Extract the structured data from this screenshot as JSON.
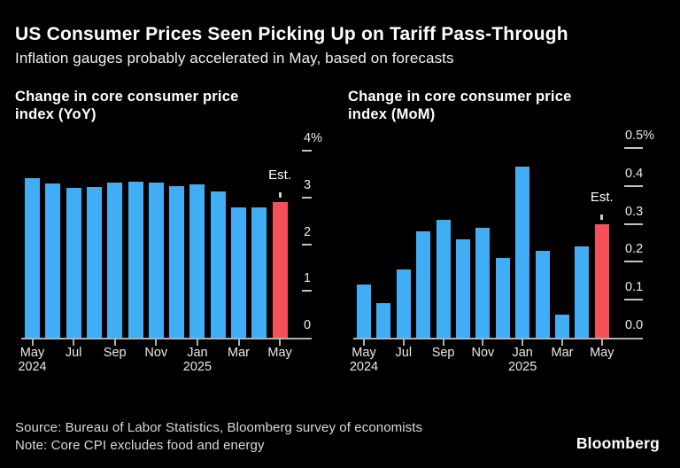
{
  "header": {
    "title": "US Consumer Prices Seen Picking Up on Tariff Pass-Through",
    "subtitle": "Inflation gauges probably accelerated in May, based on forecasts"
  },
  "footer": {
    "source": "Source: Bureau of Labor Statistics, Bloomberg survey of economists",
    "note": "Note: Core CPI excludes food and energy",
    "logo": "Bloomberg"
  },
  "colors": {
    "background": "#000000",
    "bar_blue": "#41ADF5",
    "bar_estimate_red": "#F6515A",
    "axis_line": "#B0B0B0",
    "axis_label": "#E9E9E9",
    "title_text": "#FFFFFF",
    "footer_text": "#D9D9D9"
  },
  "chart_data": [
    {
      "type": "bar",
      "title": "Change in core consumer price index (YoY)",
      "title_lines": [
        "Change in core consumer price",
        "index (YoY)"
      ],
      "ylabel": "%",
      "ylim": [
        0,
        4
      ],
      "grid": false,
      "legend": "none",
      "categories": [
        "May 2024",
        "Jun 2024",
        "Jul 2024",
        "Aug 2024",
        "Sep 2024",
        "Oct 2024",
        "Nov 2024",
        "Dec 2024",
        "Jan 2025",
        "Feb 2025",
        "Mar 2025",
        "Apr 2025",
        "May 2025"
      ],
      "values": [
        3.42,
        3.3,
        3.2,
        3.22,
        3.31,
        3.33,
        3.31,
        3.25,
        3.28,
        3.12,
        2.79,
        2.78,
        2.9
      ],
      "estimate_index": 12,
      "estimate_label": "Est.",
      "y_ticks": [
        {
          "label": "4%",
          "value": 4
        },
        {
          "label": "3",
          "value": 3
        },
        {
          "label": "2",
          "value": 2
        },
        {
          "label": "1",
          "value": 1
        },
        {
          "label": "0",
          "value": 0
        }
      ],
      "x_ticks": [
        {
          "index": 0,
          "label": "May",
          "sublabel": "2024"
        },
        {
          "index": 2,
          "label": "Jul"
        },
        {
          "index": 4,
          "label": "Sep"
        },
        {
          "index": 6,
          "label": "Nov"
        },
        {
          "index": 8,
          "label": "Jan",
          "sublabel": "2025"
        },
        {
          "index": 10,
          "label": "Mar"
        },
        {
          "index": 12,
          "label": "May"
        }
      ]
    },
    {
      "type": "bar",
      "title": "Change in core consumer price index (MoM)",
      "title_lines": [
        "Change in core consumer price",
        "index (MoM)"
      ],
      "ylabel": "%",
      "ylim": [
        0,
        0.5
      ],
      "grid": false,
      "legend": "none",
      "categories": [
        "May 2024",
        "Jun 2024",
        "Jul 2024",
        "Aug 2024",
        "Sep 2024",
        "Oct 2024",
        "Nov 2024",
        "Dec 2024",
        "Jan 2025",
        "Feb 2025",
        "Mar 2025",
        "Apr 2025",
        "May 2025"
      ],
      "values": [
        0.14,
        0.09,
        0.18,
        0.28,
        0.31,
        0.26,
        0.29,
        0.21,
        0.45,
        0.23,
        0.06,
        0.24,
        0.3
      ],
      "estimate_index": 12,
      "estimate_label": "Est.",
      "y_ticks": [
        {
          "label": "0.5%",
          "value": 0.5
        },
        {
          "label": "0.4",
          "value": 0.4
        },
        {
          "label": "0.3",
          "value": 0.3
        },
        {
          "label": "0.2",
          "value": 0.2
        },
        {
          "label": "0.1",
          "value": 0.1
        },
        {
          "label": "0.0",
          "value": 0
        }
      ],
      "x_ticks": [
        {
          "index": 0,
          "label": "May",
          "sublabel": "2024"
        },
        {
          "index": 2,
          "label": "Jul"
        },
        {
          "index": 4,
          "label": "Sep"
        },
        {
          "index": 6,
          "label": "Nov"
        },
        {
          "index": 8,
          "label": "Jan",
          "sublabel": "2025"
        },
        {
          "index": 10,
          "label": "Mar"
        },
        {
          "index": 12,
          "label": "May"
        }
      ]
    }
  ]
}
